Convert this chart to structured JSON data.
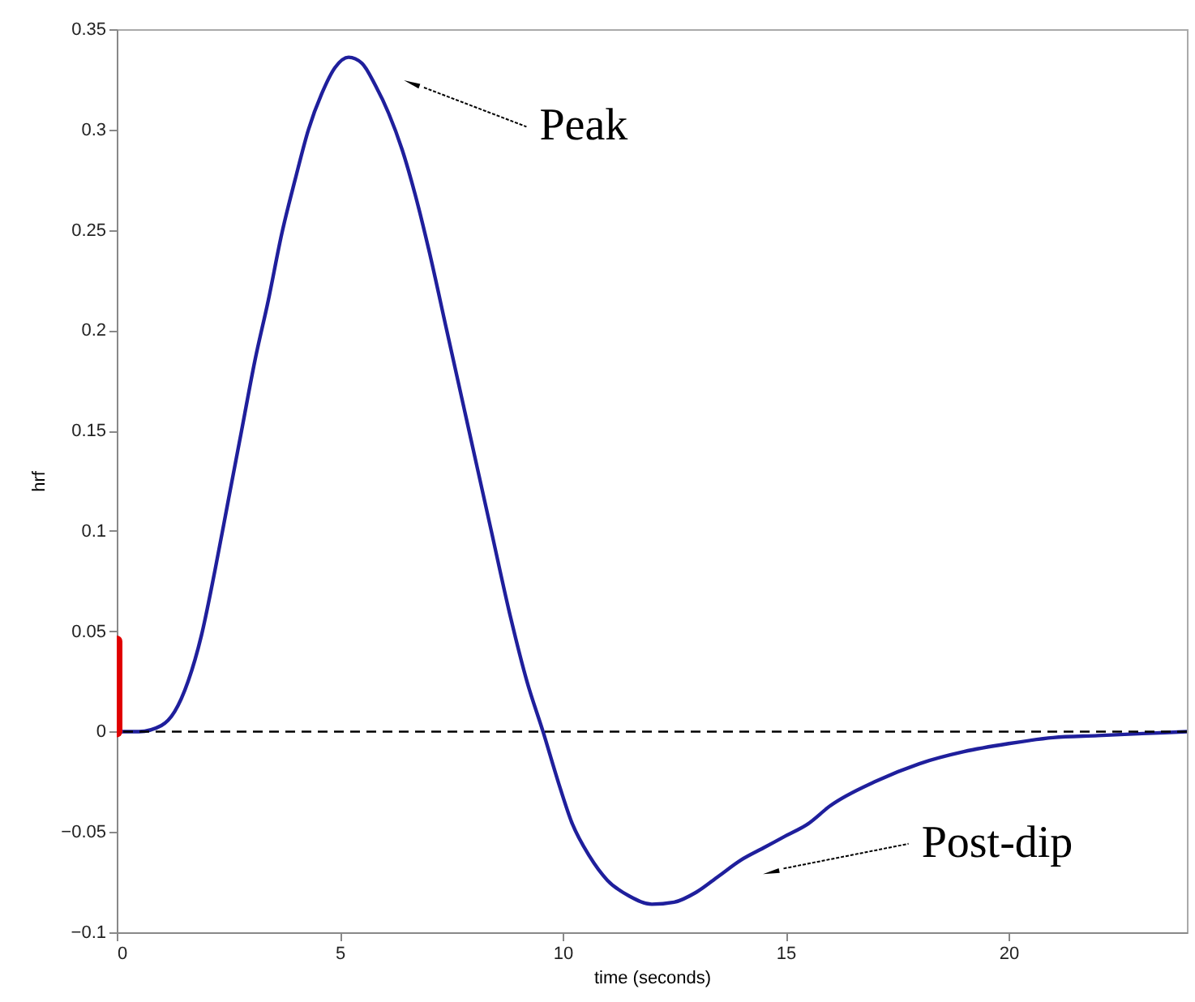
{
  "chart_data": {
    "type": "line",
    "xlabel": "time (seconds)",
    "ylabel": "hrf",
    "xlim": [
      0,
      24
    ],
    "ylim": [
      -0.1,
      0.35
    ],
    "xticks": [
      0,
      5,
      10,
      15,
      20
    ],
    "yticks": [
      -0.1,
      -0.05,
      0,
      0.05,
      0.1,
      0.15,
      0.2,
      0.25,
      0.3,
      0.35
    ],
    "grid": false,
    "marker": "none",
    "line_style": "solid",
    "series": [
      {
        "color": "#1f1f9c",
        "x": [
          0,
          0.5,
          1,
          1.3,
          1.6,
          1.9,
          2.2,
          2.5,
          2.8,
          3.1,
          3.4,
          3.7,
          4,
          4.3,
          4.6,
          4.9,
          5.2,
          5.5,
          5.8,
          6.1,
          6.4,
          6.7,
          7,
          7.4,
          7.8,
          8.1,
          8.4,
          8.8,
          9.2,
          9.56,
          9.9,
          10.2,
          10.6,
          11,
          11.5,
          12,
          12.5,
          13,
          13.5,
          14,
          14.5,
          15,
          15.5,
          16,
          17,
          18,
          19,
          20,
          21,
          22,
          23,
          24
        ],
        "values": [
          0,
          0,
          0.003,
          0.01,
          0.025,
          0.048,
          0.08,
          0.115,
          0.15,
          0.185,
          0.215,
          0.248,
          0.275,
          0.3,
          0.318,
          0.331,
          0.336,
          0.333,
          0.322,
          0.308,
          0.29,
          0.267,
          0.24,
          0.2,
          0.16,
          0.13,
          0.1,
          0.06,
          0.025,
          0,
          -0.025,
          -0.045,
          -0.062,
          -0.074,
          -0.082,
          -0.086,
          -0.085,
          -0.08,
          -0.072,
          -0.064,
          -0.058,
          -0.052,
          -0.046,
          -0.037,
          -0.025,
          -0.016,
          -0.01,
          -0.006,
          -0.003,
          -0.002,
          -0.001,
          0
        ]
      },
      {
        "color": "#e00000",
        "x": [
          0,
          0
        ],
        "values": [
          0,
          0.045
        ]
      }
    ],
    "ref_lines": [
      {
        "axis": "y",
        "value": 0,
        "color": "#000000",
        "line_style": "dashed"
      }
    ],
    "annotations": [
      "Peak",
      "Post-dip"
    ]
  }
}
